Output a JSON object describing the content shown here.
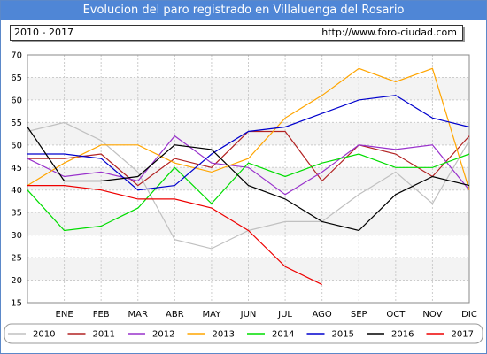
{
  "header": {
    "title": "Evolucion del paro registrado en Villaluenga del Rosario",
    "period": "2010 - 2017",
    "url": "http://www.foro-ciudad.com"
  },
  "chart_data": {
    "type": "line",
    "title": "Evolucion del paro registrado en Villaluenga del Rosario",
    "xlabel": "",
    "ylabel": "",
    "categories": [
      "ENE",
      "FEB",
      "MAR",
      "ABR",
      "MAY",
      "JUN",
      "JUL",
      "AGO",
      "SEP",
      "OCT",
      "NOV",
      "DIC"
    ],
    "y_ticks": [
      15,
      20,
      25,
      30,
      35,
      40,
      45,
      50,
      55,
      60,
      65,
      70
    ],
    "ylim": [
      15,
      70
    ],
    "grid": true,
    "legend_position": "bottom",
    "series": [
      {
        "name": "2010",
        "color": "#c0c0c0",
        "start": 53,
        "values": [
          55,
          51,
          44,
          29,
          27,
          31,
          33,
          33,
          39,
          44,
          37,
          51
        ]
      },
      {
        "name": "2011",
        "color": "#b22222",
        "start": 47,
        "values": [
          47,
          48,
          41,
          47,
          45,
          53,
          53,
          42,
          50,
          48,
          43,
          52
        ]
      },
      {
        "name": "2012",
        "color": "#9932cc",
        "start": 47,
        "values": [
          43,
          44,
          42,
          52,
          46,
          45,
          39,
          44,
          50,
          49,
          50,
          40
        ]
      },
      {
        "name": "2013",
        "color": "#ffa500",
        "start": 41,
        "values": [
          46,
          50,
          50,
          46,
          44,
          47,
          56,
          61,
          67,
          64,
          67,
          40
        ]
      },
      {
        "name": "2014",
        "color": "#00dd00",
        "start": 40,
        "values": [
          31,
          32,
          36,
          45,
          37,
          46,
          43,
          46,
          48,
          45,
          45,
          48
        ]
      },
      {
        "name": "2015",
        "color": "#0000cd",
        "start": 48,
        "values": [
          48,
          47,
          40,
          41,
          48,
          53,
          54,
          57,
          60,
          61,
          56,
          54
        ]
      },
      {
        "name": "2016",
        "color": "#000000",
        "start": 54,
        "values": [
          42,
          42,
          43,
          50,
          49,
          41,
          38,
          33,
          31,
          39,
          43,
          41
        ]
      },
      {
        "name": "2017",
        "color": "#ee0000",
        "start": 41,
        "values": [
          41,
          40,
          38,
          38,
          36,
          31,
          23,
          19,
          null,
          null,
          null,
          null
        ]
      }
    ]
  }
}
